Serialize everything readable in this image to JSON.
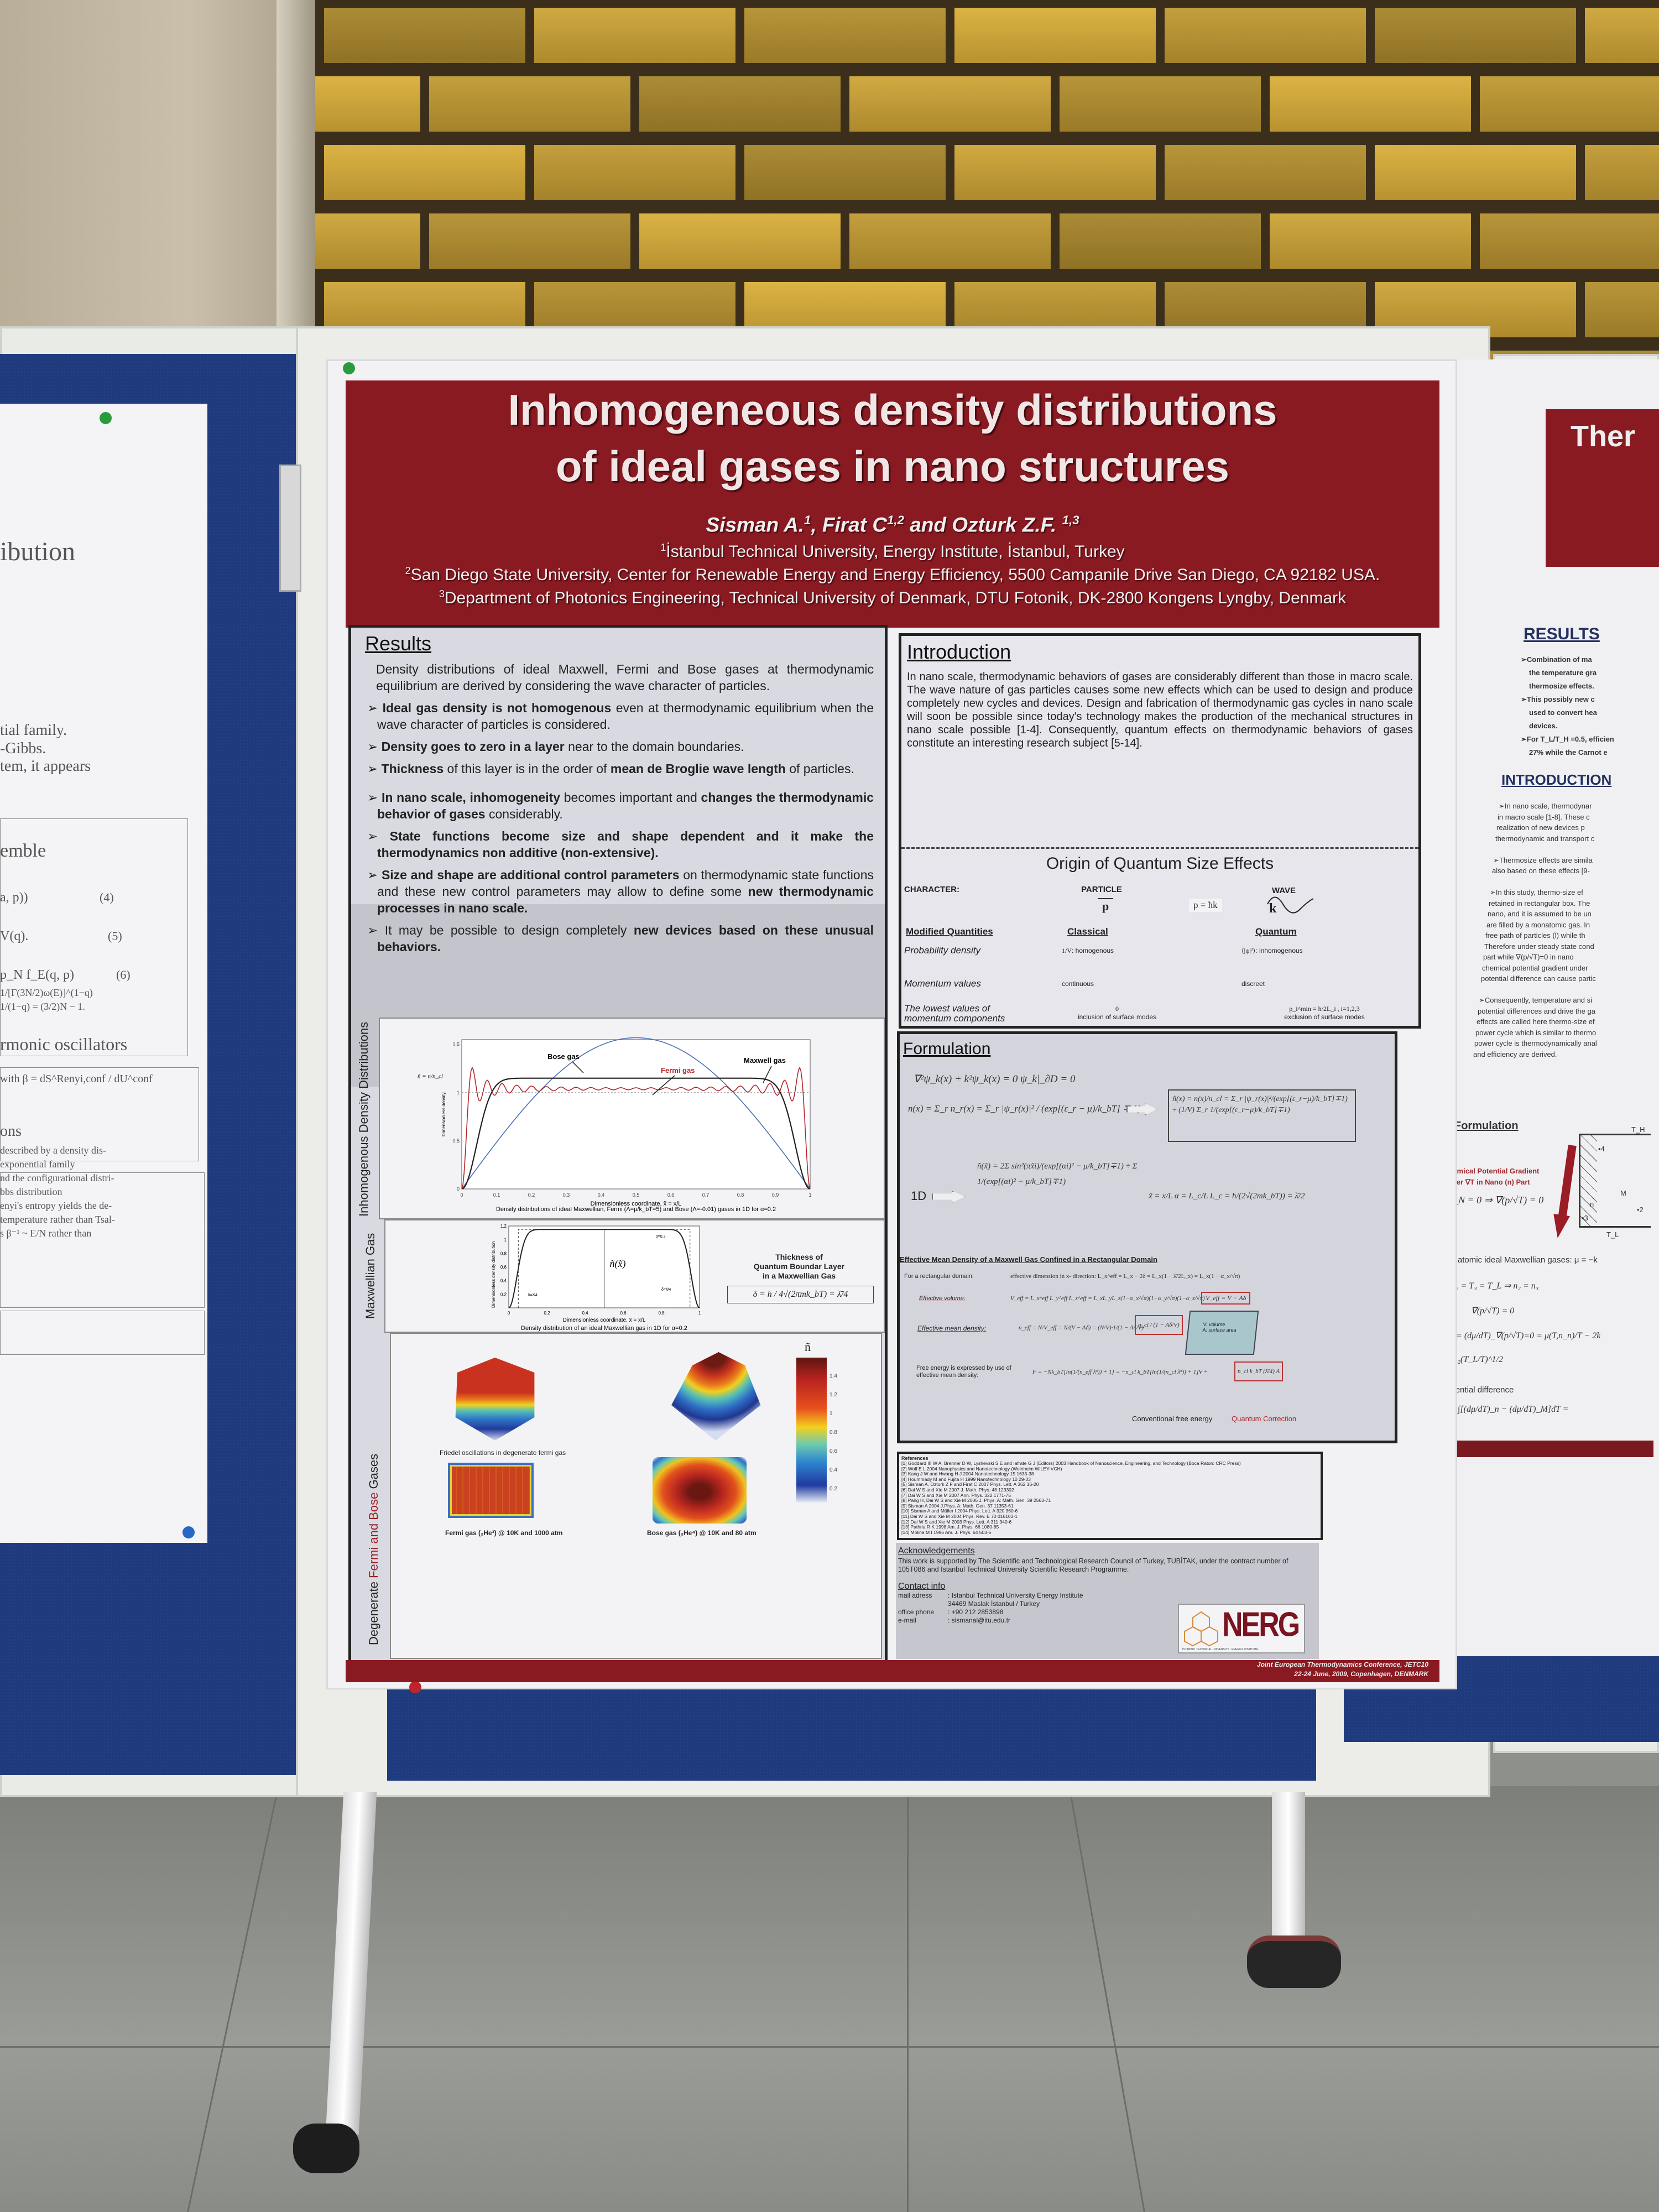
{
  "main_poster": {
    "title_line1": "Inhomogeneous density distributions",
    "title_line2": "of ideal gases in nano structures",
    "authors": {
      "a1": "Sisman A.",
      "a1_sup": "1",
      "a2": ", Firat C",
      "a2_sup": "1,2",
      "a3": " and Ozturk Z.F. ",
      "a3_sup": "1,3"
    },
    "affiliations": [
      {
        "sup": "1",
        "text": "İstanbul Technical University, Energy Institute, İstanbul, Turkey"
      },
      {
        "sup": "2",
        "text": "San Diego State University, Center for Renewable Energy and Energy Efficiency, 5500 Campanile Drive San Diego, CA 92182 USA."
      },
      {
        "sup": "3",
        "text": "Department of Photonics Engineering, Technical University of Denmark, DTU Fotonik, DK-2800 Kongens Lyngby, Denmark"
      }
    ],
    "results": {
      "heading": "Results",
      "intro": "Density distributions of ideal Maxwell, Fermi and Bose gases at thermodynamic equilibrium are derived by considering the wave character of particles.",
      "bullets": [
        [
          {
            "t": "Ideal gas density is not homogenous",
            "b": true
          },
          {
            "t": " even at thermodynamic equilibrium when the wave character of particles is considered.",
            "b": false
          }
        ],
        [
          {
            "t": "Density goes to zero in a layer",
            "b": true
          },
          {
            "t": " near to the domain boundaries.",
            "b": false
          }
        ],
        [
          {
            "t": "Thickness",
            "b": true
          },
          {
            "t": " of this layer is in the order of ",
            "b": false
          },
          {
            "t": "mean de Broglie wave length",
            "b": true
          },
          {
            "t": " of particles.",
            "b": false
          }
        ],
        [
          {
            "t": "In nano scale, inhomogeneity",
            "b": true
          },
          {
            "t": " becomes important and ",
            "b": false
          },
          {
            "t": "changes the thermodynamic behavior of gases",
            "b": true
          },
          {
            "t": " considerably.",
            "b": false
          }
        ],
        [
          {
            "t": "State functions become size and shape dependent and it make the thermodynamics non additive (non-extensive).",
            "b": true
          }
        ],
        [
          {
            "t": "Size and shape are additional control parameters",
            "b": true
          },
          {
            "t": " on thermodynamic state functions and these new control parameters may allow to define some ",
            "b": false
          },
          {
            "t": "new thermodynamic processes in nano scale.",
            "b": true
          }
        ],
        [
          {
            "t": "It may be possible to design completely ",
            "b": false
          },
          {
            "t": "new devices based on these unusual behaviors.",
            "b": true
          }
        ]
      ],
      "side_labels": {
        "p1": "Inhomogenous  Density  Distributions",
        "p2": "Maxwellian Gas",
        "p3a": "Degenerate ",
        "p3b": "Fermi and Bose",
        "p3c": " Gases"
      },
      "plot1": {
        "legend": {
          "bose": "Bose gas",
          "fermi": "Fermi gas",
          "maxwell": "Maxwell gas"
        },
        "ylabel": "Dimensionless  density,",
        "ysymbol": "ñ = n/n_cl",
        "xlabel": "Dimensionless coordinate,  x̃ = x/L",
        "xticks": [
          "0",
          "0.1",
          "0.2",
          "0.3",
          "0.4",
          "0.5",
          "0.6",
          "0.7",
          "0.8",
          "0.9",
          "1"
        ],
        "yticks": [
          "0",
          "0.5",
          "1",
          "1.5"
        ],
        "caption": "Density distributions of ideal Maxwellian, Fermi (Λ=μ/k_bT=5) and Bose (Λ=-0.01) gases in 1D for α=0.2",
        "colors": {
          "bose": "#4a6fb5",
          "fermi": "#b3262b",
          "maxwell": "#222222"
        }
      },
      "plot2": {
        "ylabel": "Dimensionless density distribution",
        "xlabel": "Dimensionless coordinate,  x̃ = x/L",
        "xticks": [
          "0",
          "0.2",
          "0.4",
          "0.6",
          "0.8",
          "1"
        ],
        "yticks": [
          "0.2",
          "0.4",
          "0.6",
          "0.8",
          "1",
          "1.2"
        ],
        "alpha_label": "α=0.2",
        "delta_left": "δ=λ̄/4",
        "delta_right": "δ=λ̄/4",
        "curve_label": "ñ(x̃)",
        "caption": "Density distribution of an ideal Maxwellian gas in 1D for α=0.2",
        "thickness_title": [
          "Thickness of",
          "Quantum Boundar Layer",
          "in a Maxwellian Gas"
        ],
        "thickness_formula": "δ = h / 4√(2πmk_bT) = λ̄/4"
      },
      "plot3": {
        "friedel_caption": "Friedel oscillations in degenerate fermi gas",
        "fermi_caption": "Fermi gas (₂He³) @ 10K and 1000 atm",
        "bose_caption": "Bose gas (₂He⁴) @ 10K and 80 atm",
        "colorbar_label": "ñ",
        "colorbar_ticks": [
          "1.4",
          "1.2",
          "1",
          "0.8",
          "0.6",
          "0.4",
          "0.2"
        ]
      }
    },
    "introduction": {
      "heading": "Introduction",
      "text": "In nano scale, thermodynamic behaviors of gases are considerably different than those in macro scale. The wave nature of gas particles causes some new effects which can be used to design and produce completely new cycles and devices. Design and fabrication of thermodynamic gas cycles in nano scale will soon be possible since today's technology makes the production of the mechanical structures in nano scale possible [1-4]. Consequently, quantum effects on thermodynamic behaviors of gases constitute an interesting research subject [5-14].",
      "origin_title": "Origin of Quantum Size Effects",
      "character_label": "CHARACTER:",
      "particle": "PARTICLE",
      "wave": "WAVE",
      "p_symbol": "p",
      "k_symbol": "k",
      "relation": "p = ħk",
      "col_headers": [
        "Modified Quantities",
        "Classical",
        "Quantum"
      ],
      "rows": [
        {
          "label": "Probability density",
          "classical_sym": "1/V",
          "classical": ": homogenous",
          "quantum_sym": "⟨|ψ|²⟩",
          "quantum": ": inhomogenous"
        },
        {
          "label": "Momentum values",
          "classical_sym": "",
          "classical": "continuous",
          "quantum_sym": "",
          "quantum": "discreet"
        },
        {
          "label": "The lowest values of momentum components",
          "classical_sym": "0",
          "classical": "inclusion of surface modes",
          "quantum_sym": "p_i^min = h/2L_i ,  i=1,2,3",
          "quantum": "exclusion of surface modes"
        }
      ]
    },
    "formulation": {
      "heading": "Formulation",
      "eq1": "∇²ψ_k(x) + k²ψ_k(x) = 0      ψ_k|_∂D = 0",
      "eq2": "n(x) = Σ_r n_r(x) = Σ_r |ψ_r(x)|² / (exp[(ε_r − μ)/k_bT] ∓ 1)",
      "eq3": "ñ(x) = n(x)/n_cl = Σ_r |ψ_r(x)|²/(exp[(ε_r−μ)/k_bT]∓1) ÷ (1/V) Σ_r 1/(exp[(ε_r−μ)/k_bT]∓1)",
      "label_1d": "1D",
      "eq4": "ñ(x̃) = 2Σ sin²(πx̃i)/(exp[(αi)² − μ/k_bT]∓1) ÷ Σ 1/(exp[(αi)² − μ/k_bT]∓1)",
      "eq5": "x̃ = x/L     α = L_c/L     L_c = h/(2√(2mk_bT)) = λ̄/2",
      "eff_title": "Effective Mean Density of a Maxwell Gas Confined in a Rectangular Domain",
      "rect_label": "For a rectangular domain:",
      "rect_eq": "effective dimension in x- direction: L_x^eff = L_x − 2δ = L_x(1 − λ̄/2L_x) = L_x(1 − α_x/√π)",
      "vol_label": "Effective volume:",
      "vol_eq": "V_eff = L_x^eff L_y^eff L_z^eff = L_xL_yL_z(1−α_x/√π)(1−α_y/√π)(1−α_z/√π)",
      "vol_box": "V_eff = V − Aδ",
      "dens_label": "Effective mean density:",
      "dens_eq": "n_eff = N/V_eff = N/(V − Aδ) = (N/V)·1/(1 − Aδ/V) =",
      "dens_box": "n_cl / (1 − Aδ/V)",
      "box_labels": [
        "V: volume",
        "A: surface area"
      ],
      "free_label": "Free energy is expressed by use of effective mean density:",
      "free_eq": "F = −Nk_bT[ln(1/(n_eff λ̄³)) + 1] = −n_cl k_bT[ln(1/(n_cl λ̄³)) + 1]V +",
      "free_box": "n_cl k_bT (λ̄/4) A",
      "conventional": "Conventional  free  energy",
      "quantum_corr": "Quantum Correction"
    },
    "references": {
      "heading": "References",
      "items": [
        "[1] Goddard III W A, Brenner D W, Lyshevski S E and Iafrate G J (Editors) 2003 Handbook of Nanoscience, Engineering, and Technology (Boca Raton: CRC Press)",
        "[2] Wolf E L 2004 Nanophysics and Nanotechnology (Weinheim WILEY-VCH)",
        "[3] Kang J W and Hwang H J 2004 Nanotechnology 15 1633-38",
        "[4] Hoummady M and Fujita H 1999 Nanotechnology 10 29-33",
        "[5] Sisman A, Ozturk Z F and Firat C 2007 Phys. Lett. A 362 16-20",
        "[6] Dai W S and Xie M 2007 J. Math. Phys. 48 123302",
        "[7] Dai W S and Xie M 2007 Ann. Phys. 322 1771-75",
        "[8] Pang H, Dai W S and Xie M 2006 J. Phys. A: Math. Gen. 39 2563-71",
        "[9] Sisman A 2004 J.Phys. A: Math. Gen. 37 11353-61",
        "[10] Sisman A and Müller I 2004 Phys. Lett. A 320 360-6",
        "[11] Dai W S and Xie M 2004 Phys. Rev. E 70 016103-1",
        "[12] Dai W S and Xie M 2003 Phys. Lett. A 311 340-6",
        "[13] Pathria R K 1998 Am. J. Phys. 66 1080-85",
        "[14] Molina M I 1996 Am. J. Phys. 64 503-5"
      ]
    },
    "acknowledgements": {
      "heading": "Acknowledgements",
      "text": "This work is supported by The Scientific and Technological Research Council of Turkey, TUBİTAK, under the contract number of 105T086 and Istanbul Technical University Scientific Research Programme."
    },
    "contact": {
      "heading": "Contact info",
      "rows": [
        {
          "label": "mail adress",
          "value": ": Istanbul Technical University Energy Institute"
        },
        {
          "label": "",
          "value": "  34469 Maslak İstanbul / Turkey"
        },
        {
          "label": "office phone",
          "value": ": +90 212 2853898"
        },
        {
          "label": "e-mail",
          "value": ": sismanal@itu.edu.tr"
        }
      ]
    },
    "logo": {
      "text": "NERG",
      "subtitle": "İSTANBUL TECHNICAL UNIVERSITY · ENERGY INSTITUTE"
    },
    "footer": {
      "line1": "Joint European Thermodynamics Conference, JETC10",
      "line2": "22-24 June, 2009, Copenhagen, DENMARK"
    },
    "colors": {
      "maroon": "#8a1a22",
      "board_blue": "#1f3b7d"
    }
  },
  "left_poster": {
    "fragments": [
      "ibution",
      "tial family.",
      "-Gibbs.",
      "tem, it appears",
      "emble",
      "a, p))",
      "(4)",
      "V(q).",
      "(5)",
      "p_N f_E(q, p)",
      "(6)",
      "1/[Γ(3N/2)ω(E)]^(1−q)",
      "1/(1−q) = (3/2)N − 1.",
      "rmonic oscillators",
      "with β = dS^Renyi,conf / dU^conf",
      "ons",
      "described by a density dis-",
      "exponential family",
      "nd the configurational distri-",
      "bbs distribution",
      "enyi's entropy yields the de-",
      "temperature rather than Tsal-",
      "s β⁻¹ ~ E/N rather than"
    ]
  },
  "right_poster": {
    "title_fragment": "Ther",
    "results_heading": "RESULTS",
    "results_lines": [
      "➢Combination of ma",
      "the temperature gra",
      "thermosize effects.",
      "➢This possibly new c",
      "used to convert hea",
      "devices.",
      "➢For T_L/T_H =0.5, efficien",
      "27% while the Carnot e"
    ],
    "intro_heading": "INTRODUCTION",
    "intro_lines": [
      "➢In nano scale, thermodynar",
      "in macro scale [1-8]. These c",
      "realization of new devices p",
      "thermodynamic and transport c",
      "",
      "➢Thermosize effects are simila",
      "also based on these effects [9-",
      "",
      "➢In this study, thermo-size ef",
      "retained in rectangular box. The",
      "nano, and it is assumed to be un",
      "are filled by a monatomic gas. In",
      "free path of particles (l) while th",
      "Therefore under steady state cond",
      "part while ∇(p/√T)=0 in nano",
      "chemical potential gradient under",
      "potential difference can cause partic",
      "",
      "➢Consequently, temperature and si",
      "potential differences and drive the ga",
      "effects are called here thermo-size ef",
      "power cycle which is similar to thermo",
      "power cycle is thermodynamically anal",
      "and efficiency are derived."
    ],
    "formulation_heading": "Formulation",
    "gradient_label": [
      "Chemical Potential Gradient",
      "under ∇T in Nano (n) Part"
    ],
    "gradient_eq": "J_N = 0 ⇒ ∇(p/√T) = 0",
    "diagram_labels": {
      "th": "T_H",
      "tl": "T_L",
      "m": "M",
      "n": "n",
      "p2": "•2",
      "p3": "•3",
      "p4": "•4"
    },
    "monatomic": "For monatomic ideal Maxwellian gases: μ = −k",
    "eqs": [
      "μ₂ = μ₃ ,  T₂ = T₃ = T_L ⇒ n₂ = n₃",
      "∇(p/√T) = 0",
      "(dμ/dT)_n = (dμ/dT)_∇(p/√T)=0 = μ(T,n_n)/T − 2k",
      "n_n(T) = n₂(T_L/T)^1/2"
    ],
    "net_label": "Net chemical potential difference",
    "net_eq": "Δμ = μ₄ − μ₁ = ∫[(dμ/dT)_n − (dμ/dT)_M]dT ="
  }
}
